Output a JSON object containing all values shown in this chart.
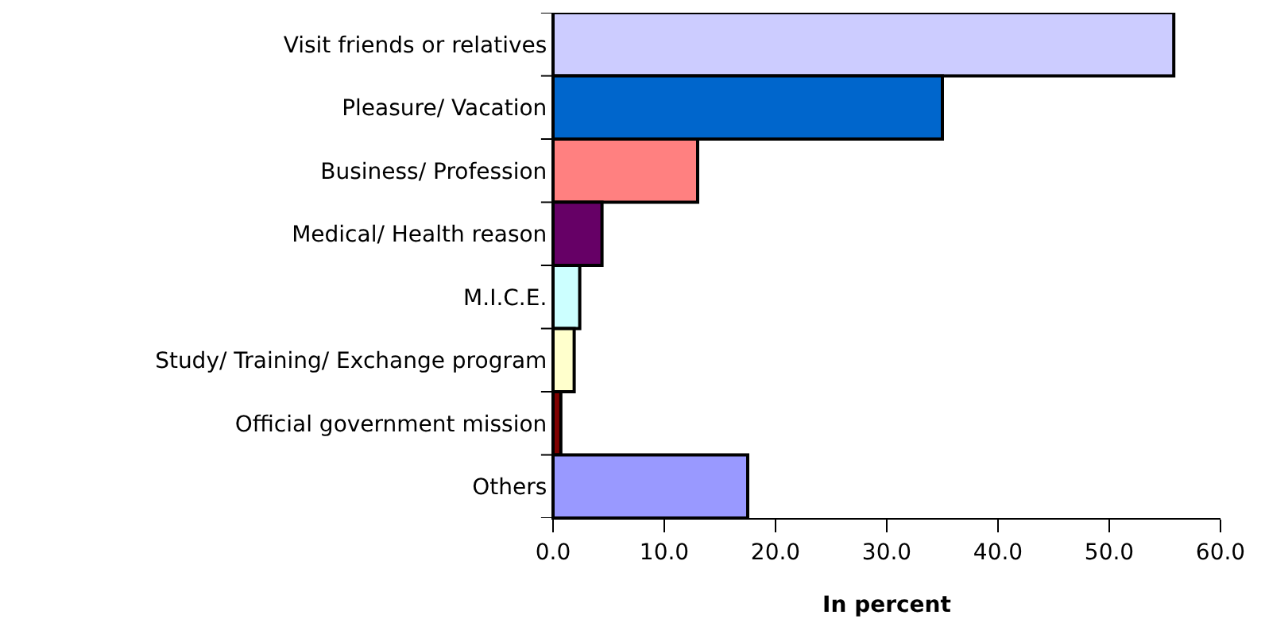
{
  "chart_data": {
    "type": "bar",
    "orientation": "horizontal",
    "xlabel": "In percent",
    "categories": [
      "Visit friends or relatives",
      "Pleasure/ Vacation",
      "Business/ Profession",
      "Medical/ Health reason",
      "M.I.C.E.",
      "Study/ Training/ Exchange program",
      "Official government mission",
      "Others"
    ],
    "values": [
      55.8,
      35.0,
      13.0,
      4.4,
      2.4,
      1.9,
      0.7,
      17.5
    ],
    "colors": [
      "#ccccff",
      "#0066cc",
      "#ff8080",
      "#660066",
      "#ccffff",
      "#ffffcc",
      "#800000",
      "#9999ff"
    ],
    "xlim": [
      0,
      60
    ],
    "xticks": [
      {
        "value": 0,
        "label": "0.0"
      },
      {
        "value": 10,
        "label": "10.0"
      },
      {
        "value": 20,
        "label": "20.0"
      },
      {
        "value": 30,
        "label": "30.0"
      },
      {
        "value": 40,
        "label": "40.0"
      },
      {
        "value": 50,
        "label": "50.0"
      },
      {
        "value": 60,
        "label": "60.0"
      }
    ],
    "grid": false
  }
}
